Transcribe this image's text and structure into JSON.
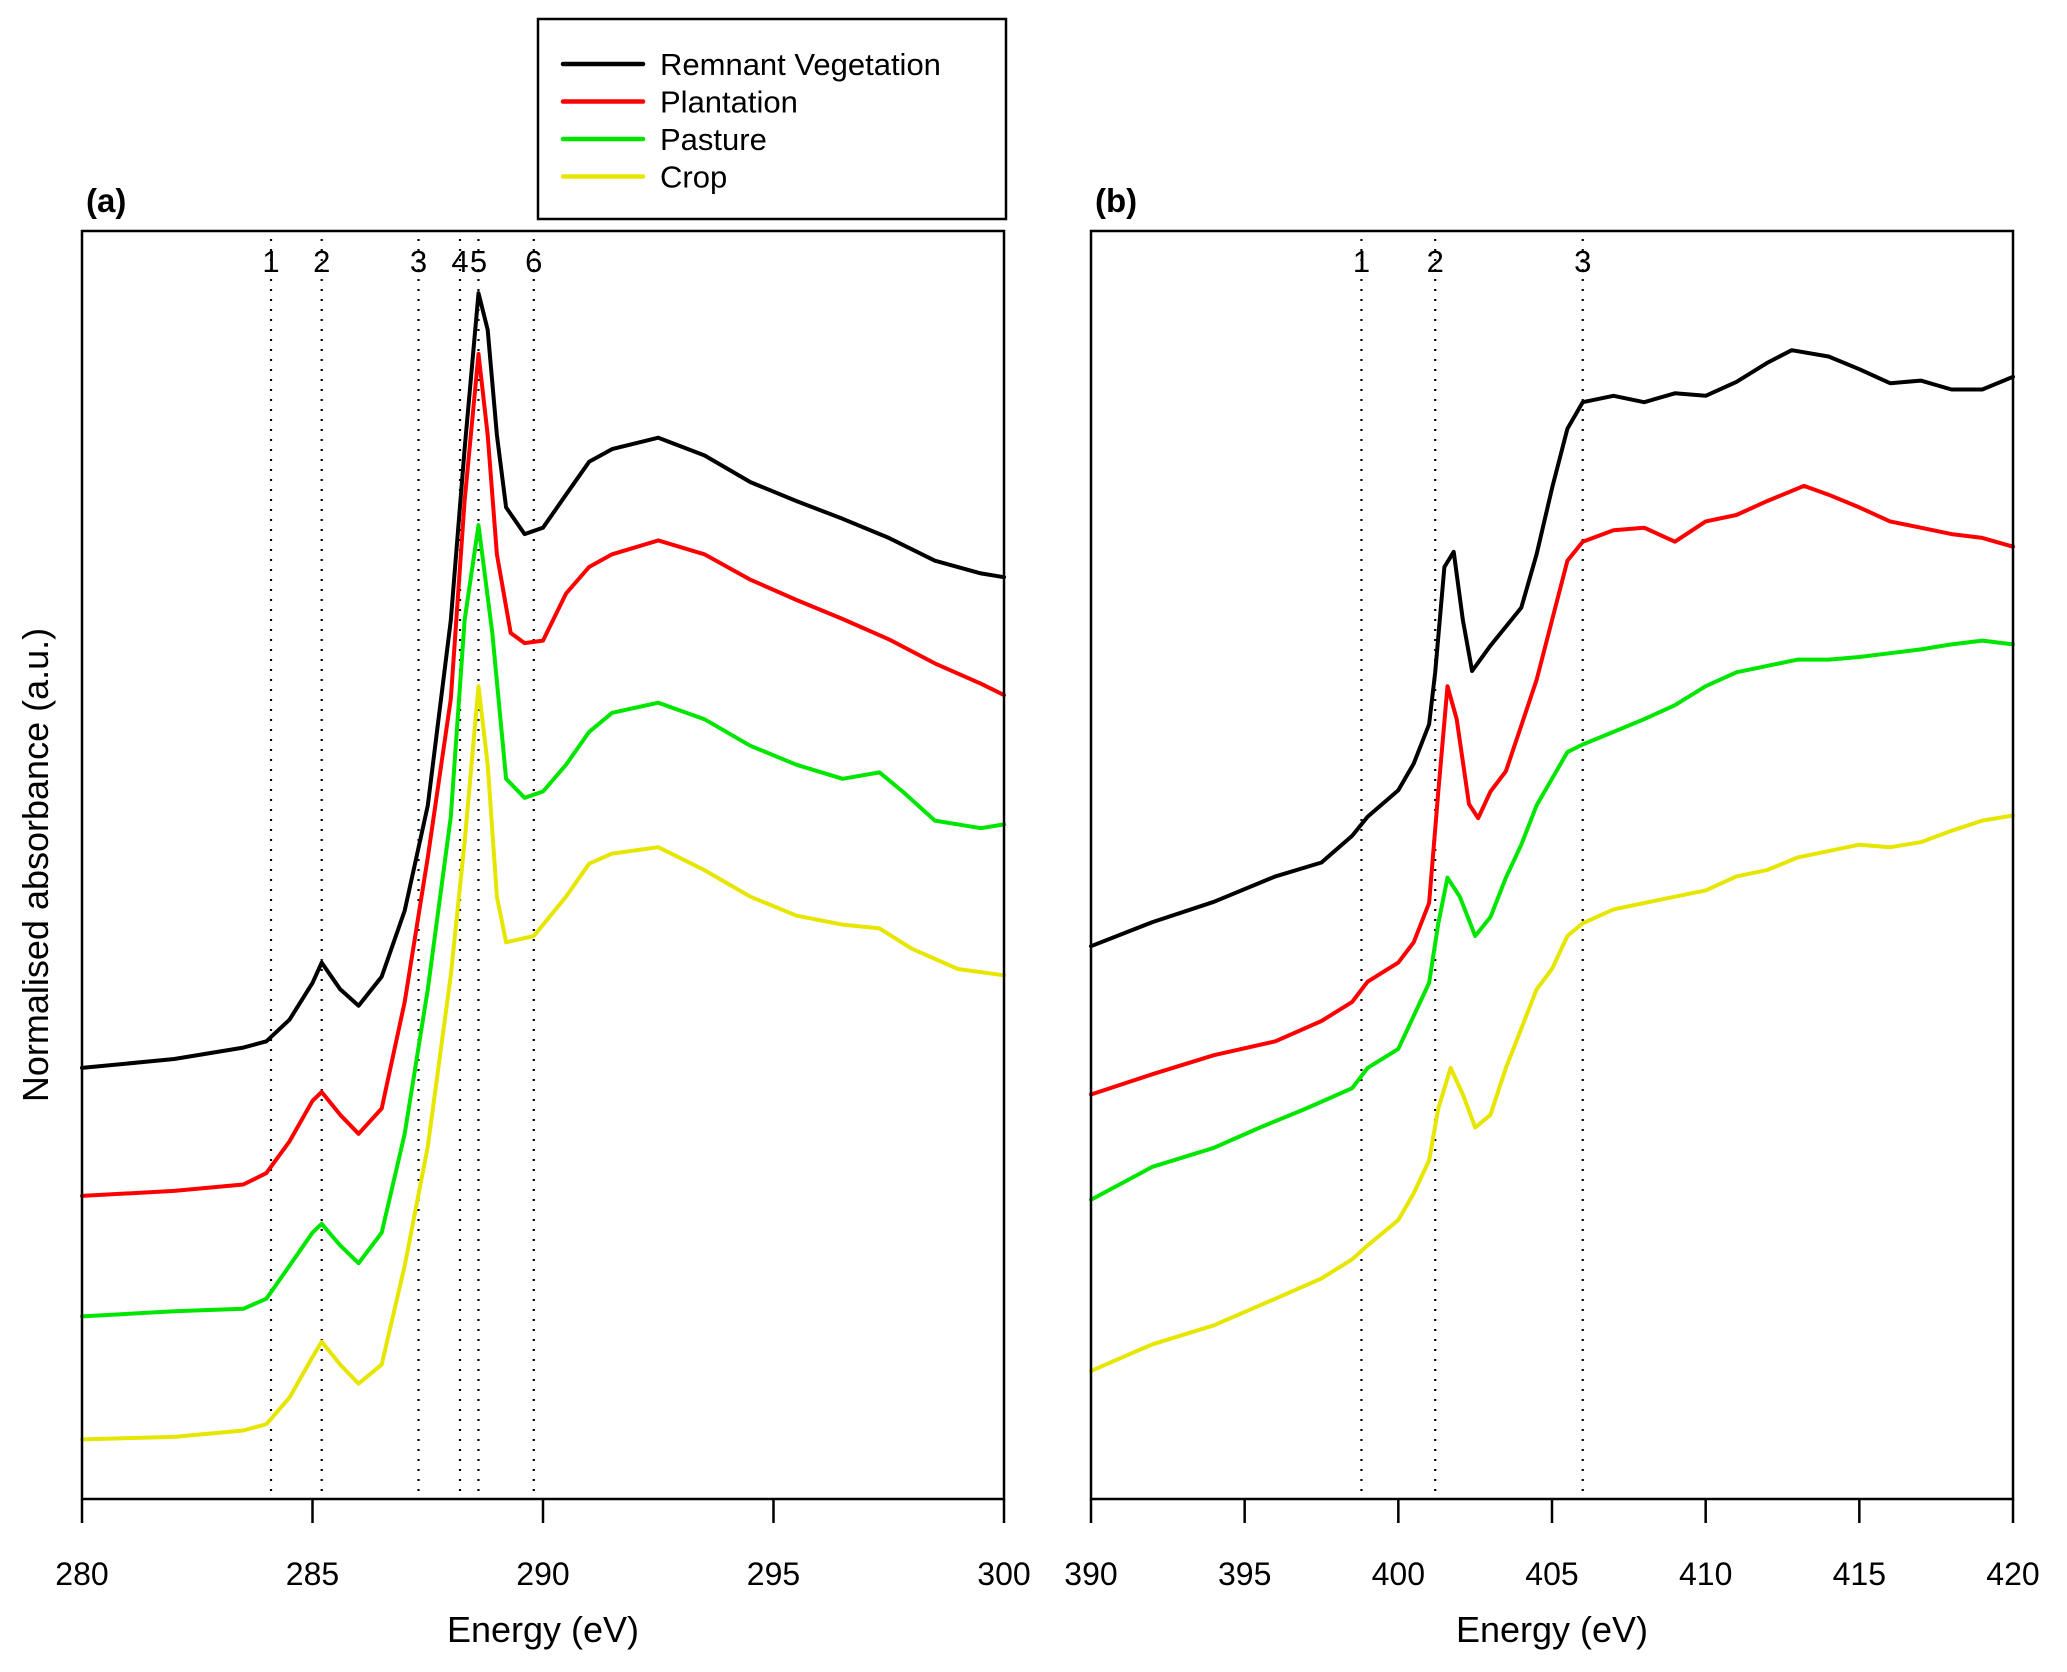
{
  "chart_data": [
    {
      "type": "line",
      "panel_label": "(a)",
      "xlabel": "Energy (eV)",
      "ylabel": "Normalised absorbance (a.u.)",
      "xlim": [
        280,
        300
      ],
      "ylim": [
        0,
        1
      ],
      "x_ticks": [
        280,
        285,
        290,
        295,
        300
      ],
      "y_ticks_shown": false,
      "grid": false,
      "reference_lines": [
        {
          "label": "1",
          "x": 284.1
        },
        {
          "label": "2",
          "x": 285.2
        },
        {
          "label": "3",
          "x": 287.3
        },
        {
          "label": "4",
          "x": 288.2
        },
        {
          "label": "5",
          "x": 288.6
        },
        {
          "label": "6",
          "x": 289.8
        }
      ],
      "series": [
        {
          "name": "Remnant Vegetation",
          "color": "#000000",
          "x": [
            280,
            282,
            283.5,
            284,
            284.5,
            285,
            285.2,
            285.6,
            286,
            286.5,
            287,
            287.5,
            288,
            288.3,
            288.6,
            288.8,
            289,
            289.2,
            289.6,
            290,
            290.5,
            291,
            291.5,
            292.5,
            293.5,
            294.5,
            295.5,
            296.5,
            297.5,
            298.5,
            299.5,
            300
          ],
          "y": [
            0.34,
            0.347,
            0.356,
            0.361,
            0.378,
            0.407,
            0.423,
            0.402,
            0.389,
            0.412,
            0.464,
            0.547,
            0.693,
            0.828,
            0.951,
            0.922,
            0.839,
            0.782,
            0.761,
            0.766,
            0.792,
            0.818,
            0.828,
            0.837,
            0.823,
            0.802,
            0.787,
            0.773,
            0.758,
            0.74,
            0.73,
            0.727
          ]
        },
        {
          "name": "Plantation",
          "color": "#ff0000",
          "x": [
            280,
            282,
            283.5,
            284,
            284.5,
            285,
            285.2,
            285.6,
            286,
            286.5,
            287,
            287.5,
            288,
            288.3,
            288.6,
            288.8,
            289,
            289.3,
            289.6,
            290,
            290.5,
            291,
            291.5,
            292.5,
            293.5,
            294.5,
            295.5,
            296.5,
            297.5,
            298.5,
            299.5,
            300
          ],
          "y": [
            0.239,
            0.243,
            0.248,
            0.257,
            0.282,
            0.314,
            0.321,
            0.303,
            0.288,
            0.308,
            0.392,
            0.506,
            0.631,
            0.787,
            0.903,
            0.839,
            0.745,
            0.683,
            0.675,
            0.677,
            0.714,
            0.735,
            0.745,
            0.756,
            0.745,
            0.725,
            0.709,
            0.694,
            0.678,
            0.659,
            0.643,
            0.634
          ]
        },
        {
          "name": "Pasture",
          "color": "#00e600",
          "x": [
            280,
            282,
            283.5,
            284,
            284.5,
            285,
            285.2,
            285.6,
            286,
            286.5,
            287,
            287.5,
            288,
            288.3,
            288.6,
            288.9,
            289.2,
            289.6,
            290,
            290.5,
            291,
            291.5,
            292.5,
            293.5,
            294.5,
            295.5,
            296.5,
            297.3,
            297.8,
            298.5,
            299.5,
            300
          ],
          "y": [
            0.144,
            0.148,
            0.15,
            0.158,
            0.184,
            0.21,
            0.217,
            0.2,
            0.186,
            0.21,
            0.288,
            0.402,
            0.538,
            0.693,
            0.768,
            0.683,
            0.568,
            0.553,
            0.558,
            0.579,
            0.605,
            0.62,
            0.628,
            0.615,
            0.594,
            0.579,
            0.568,
            0.573,
            0.558,
            0.535,
            0.529,
            0.532
          ]
        },
        {
          "name": "Crop",
          "color": "#e6e600",
          "x": [
            280,
            282,
            283.5,
            284,
            284.5,
            285,
            285.2,
            285.6,
            286,
            286.5,
            287,
            287.5,
            288,
            288.3,
            288.6,
            288.8,
            289,
            289.2,
            289.8,
            290.5,
            291,
            291.5,
            292.5,
            293.5,
            294.5,
            295.5,
            296.5,
            297.3,
            298,
            299,
            300
          ],
          "y": [
            0.047,
            0.049,
            0.054,
            0.059,
            0.08,
            0.112,
            0.124,
            0.106,
            0.091,
            0.106,
            0.184,
            0.278,
            0.413,
            0.518,
            0.641,
            0.579,
            0.475,
            0.439,
            0.444,
            0.475,
            0.501,
            0.509,
            0.514,
            0.496,
            0.475,
            0.46,
            0.453,
            0.45,
            0.434,
            0.418,
            0.413
          ]
        }
      ]
    },
    {
      "type": "line",
      "panel_label": "(b)",
      "xlabel": "Energy (eV)",
      "ylabel": "",
      "xlim": [
        390,
        420
      ],
      "ylim": [
        0,
        1
      ],
      "x_ticks": [
        390,
        395,
        400,
        405,
        410,
        415,
        420
      ],
      "y_ticks_shown": false,
      "grid": false,
      "reference_lines": [
        {
          "label": "1",
          "x": 398.8
        },
        {
          "label": "2",
          "x": 401.2
        },
        {
          "label": "3",
          "x": 406.0
        }
      ],
      "series": [
        {
          "name": "Remnant Vegetation",
          "color": "#000000",
          "x": [
            390,
            392,
            394,
            396,
            397.5,
            398.5,
            399,
            400,
            400.5,
            401,
            401.2,
            401.5,
            401.8,
            402.1,
            402.4,
            403,
            403.5,
            404,
            404.5,
            405,
            405.5,
            406,
            407,
            408,
            409,
            410,
            411,
            412,
            412.8,
            414,
            415,
            416,
            417,
            418,
            419,
            420
          ],
          "y": [
            0.436,
            0.455,
            0.471,
            0.491,
            0.502,
            0.523,
            0.538,
            0.559,
            0.58,
            0.611,
            0.652,
            0.735,
            0.747,
            0.693,
            0.653,
            0.673,
            0.688,
            0.703,
            0.745,
            0.797,
            0.844,
            0.865,
            0.87,
            0.865,
            0.872,
            0.87,
            0.881,
            0.896,
            0.906,
            0.901,
            0.891,
            0.88,
            0.882,
            0.875,
            0.875,
            0.885
          ]
        },
        {
          "name": "Plantation",
          "color": "#ff0000",
          "x": [
            390,
            392,
            394,
            396,
            397.5,
            398.5,
            399,
            400,
            400.5,
            401,
            401.3,
            401.6,
            401.9,
            402.3,
            402.6,
            403,
            403.5,
            404,
            404.5,
            405,
            405.5,
            406,
            407,
            408,
            409,
            410,
            411,
            412,
            413.2,
            414,
            415,
            416,
            417,
            418,
            419,
            420
          ],
          "y": [
            0.319,
            0.335,
            0.35,
            0.361,
            0.377,
            0.392,
            0.408,
            0.423,
            0.439,
            0.47,
            0.558,
            0.641,
            0.615,
            0.548,
            0.537,
            0.558,
            0.574,
            0.61,
            0.646,
            0.693,
            0.74,
            0.755,
            0.764,
            0.766,
            0.755,
            0.771,
            0.776,
            0.787,
            0.799,
            0.792,
            0.782,
            0.771,
            0.766,
            0.761,
            0.758,
            0.751
          ]
        },
        {
          "name": "Pasture",
          "color": "#00e600",
          "x": [
            390,
            392,
            394,
            395.5,
            397,
            398.5,
            399,
            400,
            400.5,
            401,
            401.3,
            401.6,
            402,
            402.5,
            403,
            403.5,
            404,
            404.5,
            405,
            405.5,
            406,
            407,
            408,
            409,
            410,
            411,
            412,
            413,
            414,
            415,
            416,
            417,
            418,
            419,
            420
          ],
          "y": [
            0.236,
            0.262,
            0.277,
            0.293,
            0.308,
            0.324,
            0.34,
            0.355,
            0.381,
            0.407,
            0.454,
            0.49,
            0.475,
            0.444,
            0.459,
            0.49,
            0.516,
            0.547,
            0.568,
            0.589,
            0.595,
            0.605,
            0.615,
            0.626,
            0.641,
            0.652,
            0.657,
            0.662,
            0.662,
            0.664,
            0.667,
            0.67,
            0.674,
            0.677,
            0.674
          ]
        },
        {
          "name": "Crop",
          "color": "#e6e600",
          "x": [
            390,
            392,
            394,
            396,
            397.5,
            398.5,
            399,
            400,
            400.5,
            401,
            401.3,
            401.7,
            402.1,
            402.5,
            403,
            403.5,
            404,
            404.5,
            405,
            405.5,
            406,
            407,
            408,
            409,
            410,
            411,
            412,
            413,
            414,
            415,
            416,
            417,
            418,
            419,
            420
          ],
          "y": [
            0.101,
            0.122,
            0.137,
            0.158,
            0.174,
            0.189,
            0.2,
            0.22,
            0.241,
            0.267,
            0.308,
            0.34,
            0.319,
            0.293,
            0.303,
            0.34,
            0.371,
            0.402,
            0.418,
            0.444,
            0.454,
            0.465,
            0.47,
            0.475,
            0.48,
            0.491,
            0.496,
            0.506,
            0.511,
            0.516,
            0.514,
            0.518,
            0.527,
            0.535,
            0.539
          ]
        }
      ]
    }
  ],
  "legend": {
    "placement": "top-center",
    "entries": [
      {
        "label": "Remnant Vegetation",
        "color": "#000000"
      },
      {
        "label": "Plantation",
        "color": "#ff0000"
      },
      {
        "label": "Pasture",
        "color": "#00e600"
      },
      {
        "label": "Crop",
        "color": "#e6e600"
      }
    ]
  }
}
